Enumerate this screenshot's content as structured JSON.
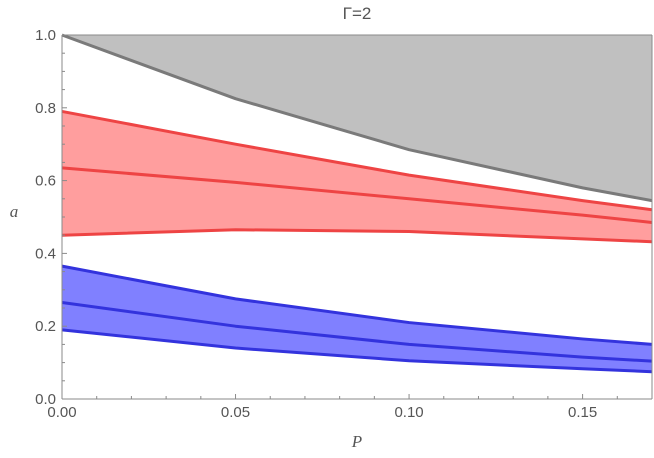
{
  "chart_data": {
    "type": "area",
    "title": "Γ=2",
    "xlabel": "P",
    "ylabel": "a",
    "xlim": [
      0,
      0.17
    ],
    "ylim": [
      0,
      1.0
    ],
    "x_ticks": [
      "0.00",
      "0.05",
      "0.10",
      "0.15"
    ],
    "y_ticks": [
      "0.0",
      "0.2",
      "0.4",
      "0.6",
      "0.8",
      "1.0"
    ],
    "grid": false,
    "legend": "none",
    "x": [
      0,
      0.05,
      0.1,
      0.15,
      0.17
    ],
    "series": [
      {
        "role": "excluded-region",
        "color_fill": "#c0c0c0",
        "color_line": "#7a7a7a",
        "lower": [
          1.0,
          0.825,
          0.685,
          0.58,
          0.545
        ],
        "upper": [
          1.0,
          1.0,
          1.0,
          1.0,
          1.0
        ]
      },
      {
        "role": "red-band",
        "color_fill": "#ff9e9e",
        "color_line": "#ee4444",
        "upper": [
          0.79,
          0.7,
          0.615,
          0.545,
          0.52
        ],
        "middle": [
          0.635,
          0.595,
          0.55,
          0.505,
          0.485
        ],
        "lower": [
          0.45,
          0.465,
          0.46,
          0.44,
          0.432
        ]
      },
      {
        "role": "blue-band",
        "color_fill": "#8080ff",
        "color_line": "#3333dd",
        "upper": [
          0.365,
          0.275,
          0.21,
          0.165,
          0.15
        ],
        "middle": [
          0.265,
          0.2,
          0.15,
          0.115,
          0.104
        ],
        "lower": [
          0.19,
          0.14,
          0.105,
          0.083,
          0.075
        ]
      }
    ]
  }
}
